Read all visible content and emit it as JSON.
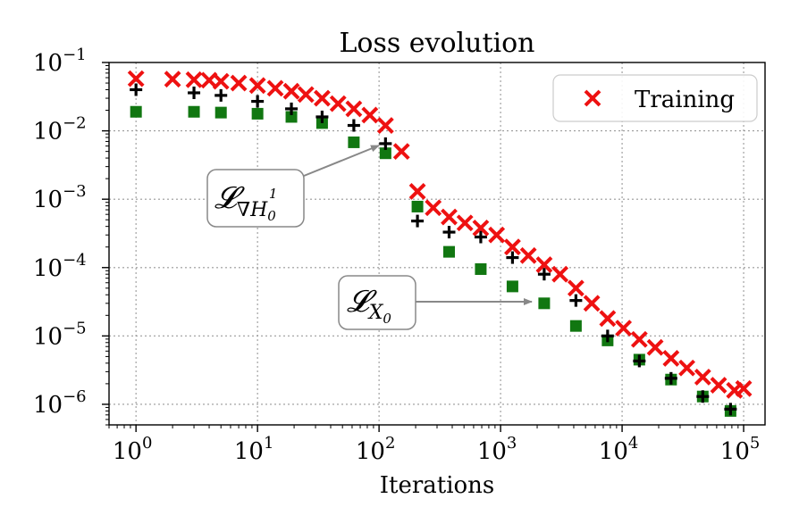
{
  "chart_data": {
    "type": "scatter",
    "title": "Loss evolution",
    "xlabel": "Iterations",
    "ylabel": "",
    "xscale": "log",
    "yscale": "log",
    "xlim": [
      0.6,
      150000
    ],
    "ylim": [
      5e-07,
      0.1
    ],
    "grid": true,
    "x_ticks": [
      {
        "value": 1,
        "base": "10",
        "exp": "0"
      },
      {
        "value": 10,
        "base": "10",
        "exp": "1"
      },
      {
        "value": 100,
        "base": "10",
        "exp": "2"
      },
      {
        "value": 1000,
        "base": "10",
        "exp": "3"
      },
      {
        "value": 10000,
        "base": "10",
        "exp": "4"
      },
      {
        "value": 100000,
        "base": "10",
        "exp": "5"
      }
    ],
    "y_ticks": [
      {
        "value": 0.1,
        "base": "10",
        "exp": "−1"
      },
      {
        "value": 0.01,
        "base": "10",
        "exp": "−2"
      },
      {
        "value": 0.001,
        "base": "10",
        "exp": "−3"
      },
      {
        "value": 0.0001,
        "base": "10",
        "exp": "−4"
      },
      {
        "value": 1e-05,
        "base": "10",
        "exp": "−5"
      },
      {
        "value": 1e-06,
        "base": "10",
        "exp": "−6"
      }
    ],
    "legend": {
      "placement": "top-right",
      "entries": [
        "Training"
      ]
    },
    "series": [
      {
        "name": "Training",
        "marker": "x",
        "color": "#ee1111",
        "points": [
          [
            1,
            0.058
          ],
          [
            2,
            0.057
          ],
          [
            3,
            0.056
          ],
          [
            4,
            0.055
          ],
          [
            5,
            0.053
          ],
          [
            7,
            0.05
          ],
          [
            10,
            0.046
          ],
          [
            14,
            0.042
          ],
          [
            19,
            0.038
          ],
          [
            25,
            0.034
          ],
          [
            34,
            0.03
          ],
          [
            46,
            0.025
          ],
          [
            62,
            0.021
          ],
          [
            84,
            0.017
          ],
          [
            113,
            0.012
          ],
          [
            153,
            0.005
          ],
          [
            207,
            0.0013
          ],
          [
            279,
            0.00075
          ],
          [
            377,
            0.00055
          ],
          [
            509,
            0.00045
          ],
          [
            687,
            0.00038
          ],
          [
            928,
            0.0003
          ],
          [
            1253,
            0.0002
          ],
          [
            1692,
            0.00015
          ],
          [
            2285,
            0.00011
          ],
          [
            3086,
            8e-05
          ],
          [
            4167,
            5e-05
          ],
          [
            5627,
            3e-05
          ],
          [
            7599,
            1.8e-05
          ],
          [
            10262,
            1.3e-05
          ],
          [
            13858,
            8.9e-06
          ],
          [
            18714,
            6.8e-06
          ],
          [
            25272,
            4.7e-06
          ],
          [
            34128,
            3.4e-06
          ],
          [
            46087,
            2.5e-06
          ],
          [
            62237,
            1.9e-06
          ],
          [
            84046,
            1.6e-06
          ],
          [
            100000,
            1.7e-06
          ]
        ]
      },
      {
        "name": "",
        "marker": "+",
        "color": "#000000",
        "points": [
          [
            1,
            0.04
          ],
          [
            3,
            0.036
          ],
          [
            5,
            0.033
          ],
          [
            10,
            0.027
          ],
          [
            19,
            0.021
          ],
          [
            34,
            0.016
          ],
          [
            62,
            0.012
          ],
          [
            113,
            0.0065
          ],
          [
            207,
            0.00048
          ],
          [
            377,
            0.00033
          ],
          [
            687,
            0.00028
          ],
          [
            1253,
            0.00014
          ],
          [
            2285,
            8e-05
          ],
          [
            4167,
            3.3e-05
          ],
          [
            7599,
            1e-05
          ],
          [
            13858,
            4.3e-06
          ],
          [
            25272,
            2.4e-06
          ],
          [
            46087,
            1.3e-06
          ],
          [
            78000,
            8.5e-07
          ]
        ]
      },
      {
        "name": "",
        "marker": "s",
        "color": "#117711",
        "points": [
          [
            1,
            0.019
          ],
          [
            3,
            0.019
          ],
          [
            5,
            0.0185
          ],
          [
            10,
            0.0178
          ],
          [
            19,
            0.016
          ],
          [
            34,
            0.013
          ],
          [
            62,
            0.0068
          ],
          [
            113,
            0.0047
          ],
          [
            207,
            0.00078
          ],
          [
            377,
            0.00017
          ],
          [
            687,
            9.5e-05
          ],
          [
            1253,
            5.3e-05
          ],
          [
            2285,
            3e-05
          ],
          [
            4167,
            1.4e-05
          ],
          [
            7599,
            8.6e-06
          ],
          [
            13858,
            4.5e-06
          ],
          [
            25272,
            2.3e-06
          ],
          [
            46087,
            1.3e-06
          ],
          [
            78000,
            8e-07
          ]
        ]
      }
    ],
    "annotations": [
      {
        "id": "grad",
        "label_main": "𝓛",
        "label_sub": "∇H",
        "label_sub_sub": "0",
        "label_sup": "1",
        "color": "#000000",
        "points_to": [
          115,
          0.0063
        ]
      },
      {
        "id": "x0",
        "label_main": "𝓛",
        "label_sub": "X",
        "label_sub_sub": "0",
        "label_sup": "",
        "color": "#117711",
        "points_to": [
          2200,
          3e-05
        ]
      }
    ]
  }
}
